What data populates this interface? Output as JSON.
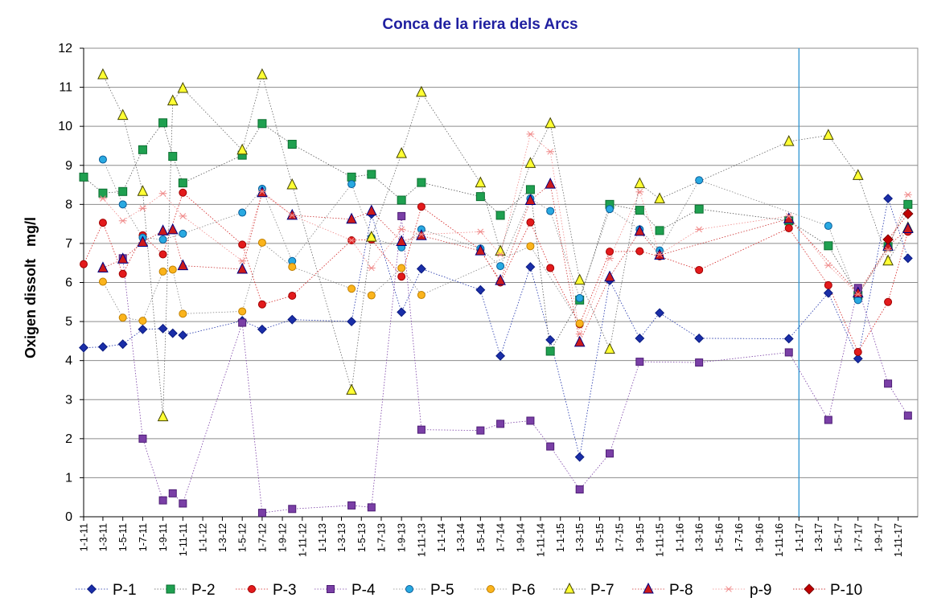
{
  "chart_data": {
    "type": "line",
    "title": "Conca de la riera dels Arcs",
    "ylabel": "Oxigen dissolt   mg/l",
    "xlabel": "",
    "ylim": [
      0,
      12
    ],
    "yticks": [
      0,
      1,
      2,
      3,
      4,
      5,
      6,
      7,
      8,
      9,
      10,
      11,
      12
    ],
    "grid": "horizontal",
    "legend": "bottom",
    "x_is_date": true,
    "x_range": [
      "2011-01-01",
      "2017-12-31"
    ],
    "x_tick_labels": [
      "1-1-11",
      "1-3-11",
      "1-5-11",
      "1-7-11",
      "1-9-11",
      "1-11-11",
      "1-1-12",
      "1-3-12",
      "1-5-12",
      "1-7-12",
      "1-9-12",
      "1-11-12",
      "1-1-13",
      "1-3-13",
      "1-5-13",
      "1-7-13",
      "1-9-13",
      "1-11-13",
      "1-1-14",
      "1-3-14",
      "1-5-14",
      "1-7-14",
      "1-9-14",
      "1-11-14",
      "1-1-15",
      "1-3-15",
      "1-5-15",
      "1-7-15",
      "1-9-15",
      "1-11-15",
      "1-1-16",
      "1-3-16",
      "1-5-16",
      "1-7-16",
      "1-9-16",
      "1-11-16",
      "1-1-17",
      "1-3-17",
      "1-5-17",
      "1-7-17",
      "1-9-17",
      "1-11-17"
    ],
    "x_tick_dates": [
      "2011-01-01",
      "2011-03-01",
      "2011-05-01",
      "2011-07-01",
      "2011-09-01",
      "2011-11-01",
      "2012-01-01",
      "2012-03-01",
      "2012-05-01",
      "2012-07-01",
      "2012-09-01",
      "2012-11-01",
      "2013-01-01",
      "2013-03-01",
      "2013-05-01",
      "2013-07-01",
      "2013-09-01",
      "2013-11-01",
      "2014-01-01",
      "2014-03-01",
      "2014-05-01",
      "2014-07-01",
      "2014-09-01",
      "2014-11-01",
      "2015-01-01",
      "2015-03-01",
      "2015-05-01",
      "2015-07-01",
      "2015-09-01",
      "2015-11-01",
      "2016-01-01",
      "2016-03-01",
      "2016-05-01",
      "2016-07-01",
      "2016-09-01",
      "2016-11-01",
      "2017-01-01",
      "2017-03-01",
      "2017-05-01",
      "2017-07-01",
      "2017-09-01",
      "2017-11-01"
    ],
    "vertical_marker": "2017-01-01",
    "vertical_marker_color": "#2e95d3",
    "series": [
      {
        "name": "P-1",
        "marker": "diamond",
        "fill": "#1a2ea8",
        "stroke": "#0a1a80",
        "line": "#1a2ea8",
        "size": 7,
        "points": [
          [
            "2011-01-01",
            4.33
          ],
          [
            "2011-03-01",
            4.35
          ],
          [
            "2011-05-01",
            4.42
          ],
          [
            "2011-07-01",
            4.8
          ],
          [
            "2011-09-01",
            4.82
          ],
          [
            "2011-10-01",
            4.7
          ],
          [
            "2011-11-01",
            4.65
          ],
          [
            "2012-05-01",
            5.02
          ],
          [
            "2012-07-01",
            4.8
          ],
          [
            "2012-10-01",
            5.05
          ],
          [
            "2013-04-01",
            5.0
          ],
          [
            "2013-06-01",
            7.75
          ],
          [
            "2013-09-01",
            5.24
          ],
          [
            "2013-11-01",
            6.35
          ],
          [
            "2014-05-01",
            5.81
          ],
          [
            "2014-07-01",
            4.12
          ],
          [
            "2014-10-01",
            6.4
          ],
          [
            "2014-12-01",
            4.53
          ],
          [
            "2015-03-01",
            1.53
          ],
          [
            "2015-06-01",
            6.05
          ],
          [
            "2015-09-01",
            4.57
          ],
          [
            "2015-11-01",
            5.22
          ],
          [
            "2016-03-01",
            4.57
          ],
          [
            "2016-12-01",
            4.56
          ],
          [
            "2017-04-01",
            5.73
          ],
          [
            "2017-07-01",
            4.05
          ],
          [
            "2017-10-01",
            8.15
          ],
          [
            "2017-12-01",
            6.62
          ]
        ]
      },
      {
        "name": "P-2",
        "marker": "square",
        "fill": "#1fa050",
        "stroke": "#0b6e30",
        "line": "#555555",
        "size": 10,
        "points": [
          [
            "2011-01-01",
            8.7
          ],
          [
            "2011-03-01",
            8.29
          ],
          [
            "2011-05-01",
            8.33
          ],
          [
            "2011-07-01",
            9.4
          ],
          [
            "2011-09-01",
            10.09
          ],
          [
            "2011-10-01",
            9.23
          ],
          [
            "2011-11-01",
            8.55
          ],
          [
            "2012-05-01",
            9.26
          ],
          [
            "2012-07-01",
            10.07
          ],
          [
            "2012-10-01",
            9.54
          ],
          [
            "2013-04-01",
            8.7
          ],
          [
            "2013-06-01",
            8.77
          ],
          [
            "2013-09-01",
            8.11
          ],
          [
            "2013-11-01",
            8.56
          ],
          [
            "2014-05-01",
            8.2
          ],
          [
            "2014-07-01",
            7.72
          ],
          [
            "2014-10-01",
            8.38
          ],
          [
            "2014-12-01",
            4.24
          ],
          [
            "2015-03-01",
            5.55
          ],
          [
            "2015-06-01",
            8.0
          ],
          [
            "2015-09-01",
            7.85
          ],
          [
            "2015-11-01",
            7.33
          ],
          [
            "2016-03-01",
            7.88
          ],
          [
            "2016-12-01",
            7.58
          ],
          [
            "2017-04-01",
            6.94
          ],
          [
            "2017-07-01",
            5.67
          ],
          [
            "2017-10-01",
            6.92
          ],
          [
            "2017-12-01",
            8.0
          ]
        ]
      },
      {
        "name": "P-3",
        "marker": "circle",
        "fill": "#e31a1c",
        "stroke": "#a00000",
        "line": "#d42020",
        "size": 9,
        "points": [
          [
            "2011-01-01",
            6.47
          ],
          [
            "2011-03-01",
            7.53
          ],
          [
            "2011-05-01",
            6.22
          ],
          [
            "2011-07-01",
            7.21
          ],
          [
            "2011-09-01",
            6.72
          ],
          [
            "2011-11-01",
            8.3
          ],
          [
            "2012-05-01",
            6.97
          ],
          [
            "2012-07-01",
            5.44
          ],
          [
            "2012-10-01",
            5.66
          ],
          [
            "2013-04-01",
            7.08
          ],
          [
            "2013-06-01",
            7.1
          ],
          [
            "2013-09-01",
            6.15
          ],
          [
            "2013-11-01",
            7.94
          ],
          [
            "2014-05-01",
            6.84
          ],
          [
            "2014-07-01",
            6.0
          ],
          [
            "2014-10-01",
            7.54
          ],
          [
            "2014-12-01",
            6.37
          ],
          [
            "2015-03-01",
            4.93
          ],
          [
            "2015-06-01",
            6.79
          ],
          [
            "2015-09-01",
            6.8
          ],
          [
            "2015-11-01",
            6.67
          ],
          [
            "2016-03-01",
            6.32
          ],
          [
            "2016-12-01",
            7.39
          ],
          [
            "2017-04-01",
            5.93
          ],
          [
            "2017-07-01",
            4.22
          ],
          [
            "2017-10-01",
            5.5
          ],
          [
            "2017-12-01",
            7.3
          ]
        ]
      },
      {
        "name": "P-4",
        "marker": "square",
        "fill": "#7a3fa6",
        "stroke": "#4d1d75",
        "line": "#7a3fa6",
        "size": 9,
        "points": [
          [
            "2011-05-01",
            6.62
          ],
          [
            "2011-07-01",
            2.0
          ],
          [
            "2011-09-01",
            0.42
          ],
          [
            "2011-10-01",
            0.6
          ],
          [
            "2011-11-01",
            0.34
          ],
          [
            "2012-05-01",
            4.97
          ],
          [
            "2012-07-01",
            0.1
          ],
          [
            "2012-10-01",
            0.2
          ],
          [
            "2013-04-01",
            0.29
          ],
          [
            "2013-06-01",
            0.24
          ],
          [
            "2013-09-01",
            7.7
          ],
          [
            "2013-11-01",
            2.23
          ],
          [
            "2014-05-01",
            2.21
          ],
          [
            "2014-07-01",
            2.38
          ],
          [
            "2014-10-01",
            2.46
          ],
          [
            "2014-12-01",
            1.8
          ],
          [
            "2015-03-01",
            0.7
          ],
          [
            "2015-06-01",
            1.62
          ],
          [
            "2015-09-01",
            3.97
          ],
          [
            "2016-03-01",
            3.95
          ],
          [
            "2016-12-01",
            4.21
          ],
          [
            "2017-04-01",
            2.48
          ],
          [
            "2017-07-01",
            5.86
          ],
          [
            "2017-10-01",
            3.41
          ],
          [
            "2017-12-01",
            2.59
          ]
        ]
      },
      {
        "name": "P-5",
        "marker": "circle",
        "fill": "#29a9e1",
        "stroke": "#0a5e9a",
        "line": "#888888",
        "size": 9,
        "points": [
          [
            "2011-03-01",
            9.15
          ],
          [
            "2011-05-01",
            8.0
          ],
          [
            "2011-07-01",
            7.15
          ],
          [
            "2011-09-01",
            7.1
          ],
          [
            "2011-11-01",
            7.25
          ],
          [
            "2012-05-01",
            7.79
          ],
          [
            "2012-07-01",
            8.4
          ],
          [
            "2012-10-01",
            6.55
          ],
          [
            "2013-04-01",
            8.52
          ],
          [
            "2013-06-01",
            7.15
          ],
          [
            "2013-09-01",
            6.9
          ],
          [
            "2013-11-01",
            7.36
          ],
          [
            "2014-05-01",
            6.87
          ],
          [
            "2014-07-01",
            6.42
          ],
          [
            "2014-10-01",
            8.15
          ],
          [
            "2014-12-01",
            7.83
          ],
          [
            "2015-03-01",
            5.6
          ],
          [
            "2015-06-01",
            7.88
          ],
          [
            "2015-09-01",
            7.36
          ],
          [
            "2015-11-01",
            6.82
          ],
          [
            "2016-03-01",
            8.62
          ],
          [
            "2017-04-01",
            7.45
          ],
          [
            "2017-07-01",
            5.55
          ]
        ]
      },
      {
        "name": "P-6",
        "marker": "circle",
        "fill": "#fbb41c",
        "stroke": "#c08000",
        "line": "#888888",
        "size": 9,
        "points": [
          [
            "2011-03-01",
            6.02
          ],
          [
            "2011-05-01",
            5.1
          ],
          [
            "2011-07-01",
            5.02
          ],
          [
            "2011-09-01",
            6.28
          ],
          [
            "2011-10-01",
            6.33
          ],
          [
            "2011-11-01",
            5.2
          ],
          [
            "2012-05-01",
            5.26
          ],
          [
            "2012-07-01",
            7.02
          ],
          [
            "2012-10-01",
            6.4
          ],
          [
            "2013-04-01",
            5.84
          ],
          [
            "2013-06-01",
            5.67
          ],
          [
            "2013-09-01",
            6.37
          ],
          [
            "2013-11-01",
            5.68
          ],
          [
            "2014-10-01",
            6.93
          ],
          [
            "2015-03-01",
            4.95
          ]
        ]
      },
      {
        "name": "P-7",
        "marker": "triangle",
        "fill": "#ffff33",
        "stroke": "#444400",
        "line": "#666666",
        "size": 12,
        "points": [
          [
            "2011-03-01",
            11.32
          ],
          [
            "2011-05-01",
            10.28
          ],
          [
            "2011-07-01",
            8.33
          ],
          [
            "2011-09-01",
            2.56
          ],
          [
            "2011-10-01",
            10.65
          ],
          [
            "2011-11-01",
            10.97
          ],
          [
            "2012-05-01",
            9.39
          ],
          [
            "2012-07-01",
            11.32
          ],
          [
            "2012-10-01",
            8.5
          ],
          [
            "2013-04-01",
            3.24
          ],
          [
            "2013-06-01",
            7.16
          ],
          [
            "2013-09-01",
            9.3
          ],
          [
            "2013-11-01",
            10.87
          ],
          [
            "2014-05-01",
            8.55
          ],
          [
            "2014-07-01",
            6.8
          ],
          [
            "2014-10-01",
            9.05
          ],
          [
            "2014-12-01",
            10.07
          ],
          [
            "2015-03-01",
            6.06
          ],
          [
            "2015-06-01",
            4.29
          ],
          [
            "2015-09-01",
            8.53
          ],
          [
            "2015-11-01",
            8.14
          ],
          [
            "2016-12-01",
            9.61
          ],
          [
            "2017-04-01",
            9.77
          ],
          [
            "2017-07-01",
            8.74
          ],
          [
            "2017-10-01",
            6.55
          ],
          [
            "2017-12-01",
            7.4
          ]
        ]
      },
      {
        "name": "P-8",
        "marker": "triangle",
        "fill": "#cc1a1a",
        "stroke": "#000080",
        "line": "#cc3333",
        "size": 12,
        "points": [
          [
            "2011-03-01",
            6.37
          ],
          [
            "2011-05-01",
            6.6
          ],
          [
            "2011-07-01",
            7.03
          ],
          [
            "2011-09-01",
            7.32
          ],
          [
            "2011-10-01",
            7.35
          ],
          [
            "2011-11-01",
            6.43
          ],
          [
            "2012-05-01",
            6.34
          ],
          [
            "2012-07-01",
            8.3
          ],
          [
            "2012-10-01",
            7.72
          ],
          [
            "2013-04-01",
            7.62
          ],
          [
            "2013-06-01",
            7.83
          ],
          [
            "2013-09-01",
            7.05
          ],
          [
            "2013-11-01",
            7.2
          ],
          [
            "2014-05-01",
            6.81
          ],
          [
            "2014-07-01",
            6.05
          ],
          [
            "2014-10-01",
            8.1
          ],
          [
            "2014-12-01",
            8.52
          ],
          [
            "2015-03-01",
            4.47
          ],
          [
            "2015-06-01",
            6.14
          ],
          [
            "2015-09-01",
            7.31
          ],
          [
            "2015-11-01",
            6.7
          ],
          [
            "2016-12-01",
            7.63
          ],
          [
            "2017-07-01",
            5.73
          ],
          [
            "2017-10-01",
            6.93
          ],
          [
            "2017-12-01",
            7.38
          ]
        ]
      },
      {
        "name": "p-9",
        "marker": "star",
        "fill": "none",
        "stroke": "#f08a8a",
        "line": "#f08a8a",
        "size": 7,
        "points": [
          [
            "2011-03-01",
            8.15
          ],
          [
            "2011-05-01",
            7.58
          ],
          [
            "2011-07-01",
            7.9
          ],
          [
            "2011-09-01",
            8.28
          ],
          [
            "2011-11-01",
            7.7
          ],
          [
            "2012-05-01",
            6.55
          ],
          [
            "2012-07-01",
            8.33
          ],
          [
            "2012-10-01",
            7.72
          ],
          [
            "2013-04-01",
            7.08
          ],
          [
            "2013-06-01",
            6.37
          ],
          [
            "2013-09-01",
            7.36
          ],
          [
            "2013-11-01",
            7.23
          ],
          [
            "2014-05-01",
            7.3
          ],
          [
            "2014-07-01",
            6.72
          ],
          [
            "2014-10-01",
            9.8
          ],
          [
            "2014-12-01",
            9.35
          ],
          [
            "2015-03-01",
            4.68
          ],
          [
            "2015-06-01",
            6.62
          ],
          [
            "2015-09-01",
            8.32
          ],
          [
            "2015-11-01",
            6.72
          ],
          [
            "2016-03-01",
            7.36
          ],
          [
            "2016-12-01",
            7.7
          ],
          [
            "2017-04-01",
            6.44
          ],
          [
            "2017-07-01",
            5.7
          ],
          [
            "2017-10-01",
            6.84
          ],
          [
            "2017-12-01",
            8.25
          ]
        ]
      },
      {
        "name": "P-10",
        "marker": "diamond",
        "fill": "#c00000",
        "stroke": "#7a0000",
        "line": "#c00000",
        "size": 8,
        "points": [
          [
            "2017-10-01",
            7.1
          ],
          [
            "2017-12-01",
            7.76
          ]
        ]
      }
    ]
  }
}
